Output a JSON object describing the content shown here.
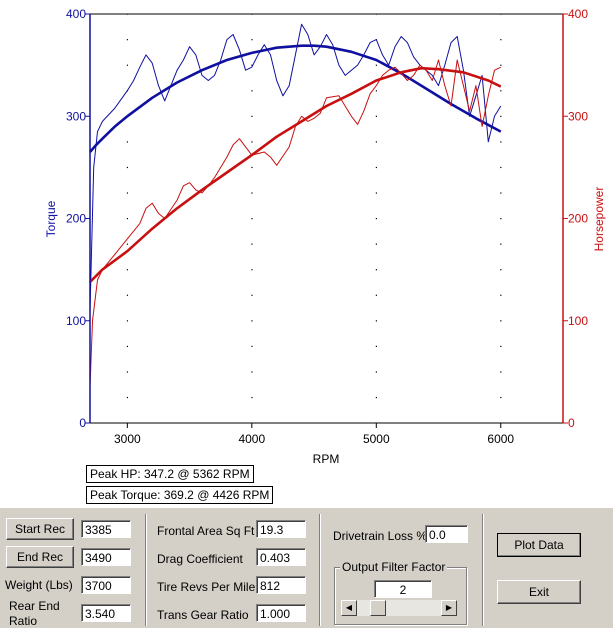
{
  "chart_data": {
    "type": "line",
    "xlabel": "RPM",
    "ylabel_left": "Torque",
    "ylabel_right": "Horsepower",
    "xlim": [
      2700,
      6500
    ],
    "ylim_left": [
      0,
      400
    ],
    "ylim_right": [
      0,
      400
    ],
    "x_ticks": [
      3000,
      4000,
      5000,
      6000
    ],
    "y_ticks_left": [
      0,
      100,
      200,
      300,
      400
    ],
    "y_ticks_right": [
      0,
      100,
      200,
      300,
      400
    ],
    "colors": {
      "torque": "#1010a0",
      "hp": "#c81010"
    },
    "series": [
      {
        "name": "Torque (raw)",
        "axis": "left",
        "style": "thin",
        "color": "#1010a0",
        "x": [
          2700,
          2730,
          2760,
          2800,
          2900,
          3000,
          3050,
          3100,
          3150,
          3200,
          3250,
          3300,
          3350,
          3400,
          3450,
          3500,
          3550,
          3600,
          3650,
          3700,
          3750,
          3800,
          3850,
          3900,
          3950,
          4000,
          4050,
          4100,
          4150,
          4200,
          4250,
          4300,
          4350,
          4400,
          4450,
          4500,
          4550,
          4600,
          4650,
          4700,
          4750,
          4800,
          4850,
          4900,
          4950,
          5000,
          5050,
          5100,
          5150,
          5200,
          5250,
          5300,
          5350,
          5400,
          5450,
          5500,
          5550,
          5600,
          5650,
          5700,
          5750,
          5800,
          5850,
          5900,
          5950,
          6000
        ],
        "y": [
          110,
          250,
          285,
          295,
          308,
          325,
          335,
          348,
          360,
          352,
          330,
          315,
          330,
          345,
          355,
          368,
          360,
          340,
          335,
          340,
          355,
          375,
          380,
          365,
          345,
          348,
          360,
          370,
          360,
          335,
          320,
          330,
          360,
          390,
          380,
          360,
          368,
          380,
          370,
          350,
          340,
          345,
          350,
          360,
          372,
          375,
          360,
          350,
          368,
          378,
          372,
          358,
          350,
          345,
          340,
          330,
          350,
          372,
          378,
          345,
          300,
          320,
          340,
          275,
          300,
          310
        ]
      },
      {
        "name": "Torque (smoothed)",
        "axis": "left",
        "style": "thick",
        "color": "#1010a0",
        "x": [
          2700,
          2750,
          2800,
          2900,
          3000,
          3200,
          3400,
          3600,
          3800,
          4000,
          4200,
          4400,
          4500,
          4600,
          4800,
          5000,
          5200,
          5400,
          5600,
          5800,
          6000
        ],
        "y": [
          265,
          272,
          278,
          290,
          300,
          318,
          333,
          345,
          355,
          362,
          367,
          369,
          369,
          368,
          363,
          355,
          342,
          327,
          312,
          298,
          285
        ]
      },
      {
        "name": "Horsepower (raw)",
        "axis": "right",
        "style": "thin",
        "color": "#c81010",
        "x": [
          2700,
          2720,
          2760,
          2800,
          2900,
          3000,
          3100,
          3150,
          3200,
          3250,
          3300,
          3400,
          3450,
          3500,
          3550,
          3600,
          3650,
          3700,
          3800,
          3850,
          3900,
          3950,
          4000,
          4100,
          4150,
          4200,
          4300,
          4350,
          4400,
          4450,
          4500,
          4550,
          4600,
          4700,
          4800,
          4850,
          4900,
          4950,
          5000,
          5050,
          5100,
          5150,
          5200,
          5250,
          5300,
          5350,
          5400,
          5450,
          5500,
          5550,
          5600,
          5650,
          5700,
          5750,
          5800,
          5850,
          5900,
          5950,
          6000
        ],
        "y": [
          35,
          100,
          140,
          150,
          165,
          180,
          195,
          210,
          215,
          205,
          200,
          218,
          232,
          235,
          228,
          225,
          232,
          240,
          260,
          272,
          278,
          270,
          262,
          265,
          260,
          252,
          270,
          290,
          300,
          295,
          298,
          303,
          318,
          320,
          300,
          292,
          305,
          322,
          330,
          340,
          345,
          348,
          342,
          335,
          340,
          350,
          345,
          335,
          355,
          330,
          310,
          355,
          330,
          305,
          330,
          290,
          320,
          345,
          348
        ]
      },
      {
        "name": "Horsepower (smoothed)",
        "axis": "right",
        "style": "thick",
        "color": "#c81010",
        "x": [
          2700,
          2750,
          2800,
          3000,
          3200,
          3400,
          3600,
          3800,
          4000,
          4200,
          4400,
          4600,
          4800,
          5000,
          5200,
          5362,
          5500,
          5700,
          5900,
          6000
        ],
        "y": [
          138,
          144,
          150,
          168,
          190,
          210,
          228,
          245,
          262,
          280,
          295,
          310,
          322,
          335,
          343,
          347,
          346,
          343,
          335,
          329
        ]
      }
    ],
    "annotations": {
      "peak_hp": "Peak HP: 347.2 @ 5362 RPM",
      "peak_torque": "Peak Torque: 369.2 @ 4426 RPM"
    }
  },
  "panel": {
    "start_rec_label": "Start Rec",
    "start_rec_value": "3385",
    "end_rec_label": "End Rec",
    "end_rec_value": "3490",
    "weight_label": "Weight (Lbs)",
    "weight_value": "3700",
    "rear_end_label_1": "Rear End",
    "rear_end_label_2": "Ratio",
    "rear_end_value": "3.540",
    "frontal_area_label": "Frontal Area Sq Ft",
    "frontal_area_value": "19.3",
    "drag_label": "Drag Coefficient",
    "drag_value": "0.403",
    "tire_revs_label": "Tire Revs Per Mile",
    "tire_revs_value": "812",
    "trans_gear_label": "Trans Gear Ratio",
    "trans_gear_value": "1.000",
    "drivetrain_loss_label": "Drivetrain Loss %",
    "drivetrain_loss_value": "0.0",
    "output_filter_label": "Output Filter Factor",
    "output_filter_value": "2",
    "output_filter_level": 0.2,
    "plot_data_label": "Plot Data",
    "exit_label": "Exit"
  }
}
